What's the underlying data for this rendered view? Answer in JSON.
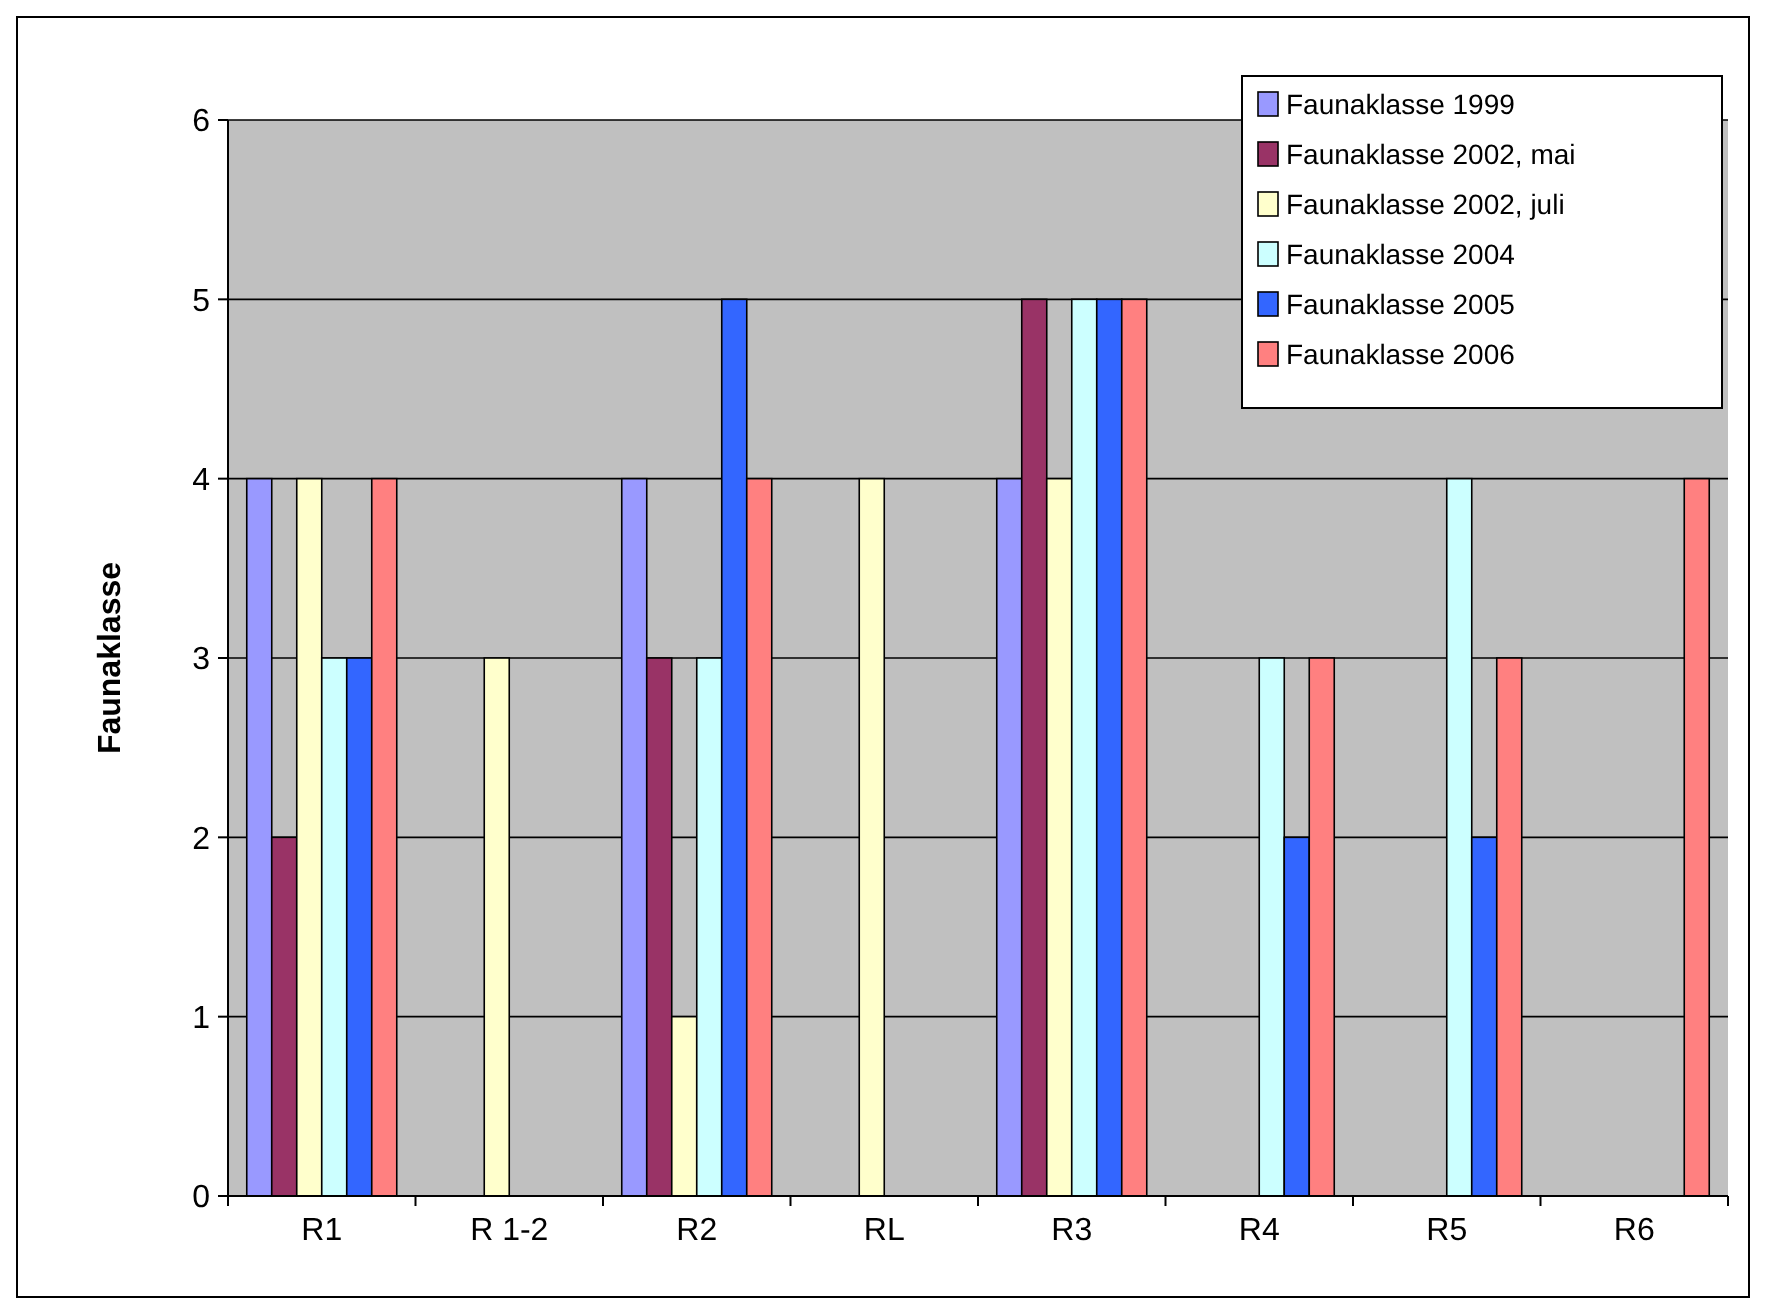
{
  "chart_data": {
    "type": "bar",
    "ylabel": "Faunaklasse",
    "categories": [
      "R1",
      "R 1-2",
      "R2",
      "RL",
      "R3",
      "R4",
      "R5",
      "R6"
    ],
    "ylim": [
      0,
      6
    ],
    "yticks": [
      0,
      1,
      2,
      3,
      4,
      5,
      6
    ],
    "grid": "y",
    "legend": "top right",
    "series": [
      {
        "name": "Faunaklasse 1999",
        "color": "#9999ff",
        "values": [
          4,
          null,
          4,
          null,
          4,
          null,
          null,
          null
        ]
      },
      {
        "name": "Faunaklasse 2002, mai",
        "color": "#993366",
        "values": [
          2,
          null,
          3,
          null,
          5,
          null,
          null,
          null
        ]
      },
      {
        "name": "Faunaklasse 2002, juli",
        "color": "#ffffcc",
        "values": [
          4,
          3,
          1,
          4,
          4,
          null,
          null,
          null
        ]
      },
      {
        "name": "Faunaklasse 2004",
        "color": "#ccffff",
        "values": [
          3,
          null,
          3,
          null,
          5,
          3,
          4,
          null
        ]
      },
      {
        "name": "Faunaklasse 2005",
        "color": "#3366ff",
        "values": [
          3,
          null,
          5,
          null,
          5,
          2,
          2,
          null
        ]
      },
      {
        "name": "Faunaklasse 2006",
        "color": "#ff8080",
        "values": [
          4,
          null,
          4,
          null,
          5,
          3,
          3,
          4
        ]
      }
    ]
  }
}
